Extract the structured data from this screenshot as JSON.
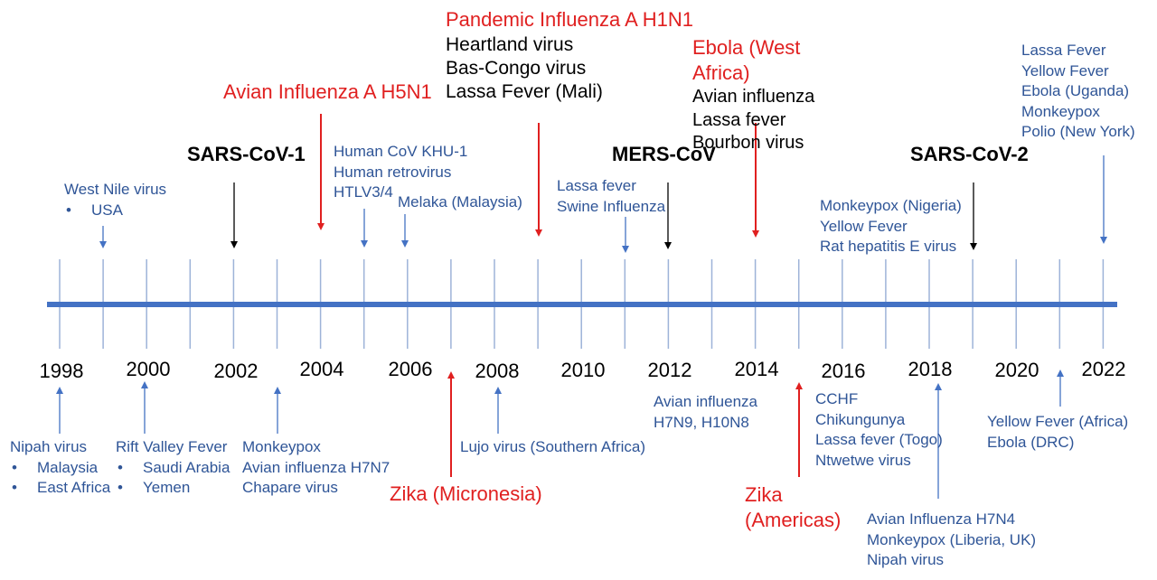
{
  "colors": {
    "axis": "#4472c4",
    "tick": "#9db3d8",
    "blue_text": "#2f5597",
    "red": "#e02020",
    "black": "#000000"
  },
  "years": [
    "1998",
    "2000",
    "2002",
    "2004",
    "2006",
    "2008",
    "2010",
    "2012",
    "2014",
    "2016",
    "2018",
    "2020",
    "2022"
  ],
  "labels": {
    "west_nile": [
      "West Nile virus",
      "USA"
    ],
    "sars1": "SARS-CoV-1",
    "h5n1": "Avian Influenza A H5N1",
    "khu1": [
      "Human CoV KHU-1",
      "Human retrovirus",
      "HTLV3/4"
    ],
    "melaka": "Melaka (Malaysia)",
    "h1n1": "Pandemic Influenza A H1N1",
    "h1n1_rest": [
      "Heartland virus",
      "Bas-Congo virus",
      "Lassa Fever (Mali)"
    ],
    "lassa_swine": [
      "Lassa fever",
      "Swine Influenza"
    ],
    "mers": "MERS-CoV",
    "ebola_wa": [
      "Ebola (West",
      "Africa)"
    ],
    "ebola_rest": [
      "Avian influenza",
      "Lassa fever",
      "Bourbon virus"
    ],
    "monkeypox_ng": [
      "Monkeypox (Nigeria)",
      "Yellow Fever",
      "Rat hepatitis E virus"
    ],
    "sars2": "SARS-CoV-2",
    "lassa_2022": [
      "Lassa Fever",
      "Yellow Fever",
      "Ebola (Uganda)",
      "Monkeypox",
      "Polio (New York)"
    ],
    "nipah": [
      "Nipah virus",
      "Malaysia",
      "East Africa"
    ],
    "rift": [
      "Rift Valley Fever",
      "Saudi Arabia",
      "Yemen"
    ],
    "monkeypox_03": [
      "Monkeypox",
      "Avian influenza H7N7",
      "Chapare virus"
    ],
    "zika_micro": "Zika (Micronesia)",
    "lujo": "Lujo virus (Southern Africa)",
    "h7n9": [
      "Avian influenza",
      "H7N9, H10N8"
    ],
    "zika_am": [
      "Zika",
      "(Americas)"
    ],
    "cchf": [
      "CCHF",
      "Chikungunya",
      "Lassa fever (Togo)",
      "Ntwetwe virus"
    ],
    "h7n4": [
      "Avian Influenza H7N4",
      "Monkeypox (Liberia, UK)",
      "Nipah virus"
    ],
    "yf_africa": [
      "Yellow Fever (Africa)",
      "Ebola (DRC)"
    ]
  }
}
